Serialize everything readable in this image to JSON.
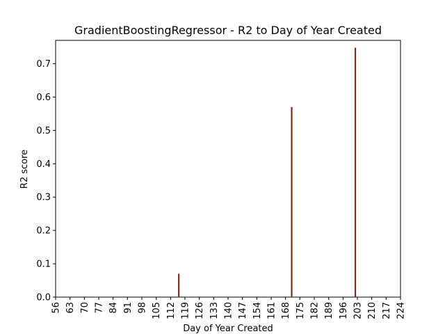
{
  "chart_data": {
    "type": "bar",
    "title": "GradientBoostingRegressor - R2 to Day of Year Created",
    "xlabel": "Day of Year Created",
    "ylabel": "R2 score",
    "xlim": [
      56,
      224
    ],
    "ylim": [
      0,
      0.77
    ],
    "x_ticks": [
      56,
      63,
      70,
      77,
      84,
      91,
      98,
      105,
      112,
      119,
      126,
      133,
      140,
      147,
      154,
      161,
      168,
      175,
      182,
      189,
      196,
      203,
      210,
      217,
      224
    ],
    "y_ticks": [
      0.0,
      0.1,
      0.2,
      0.3,
      0.4,
      0.5,
      0.6,
      0.7
    ],
    "y_tick_labels": [
      "0.0",
      "0.1",
      "0.2",
      "0.3",
      "0.4",
      "0.5",
      "0.6",
      "0.7"
    ],
    "x": [
      116,
      171,
      202
    ],
    "values": [
      0.07,
      0.57,
      0.748
    ],
    "bar_color": "#7a2e1e",
    "grid": false,
    "legend": "none"
  }
}
